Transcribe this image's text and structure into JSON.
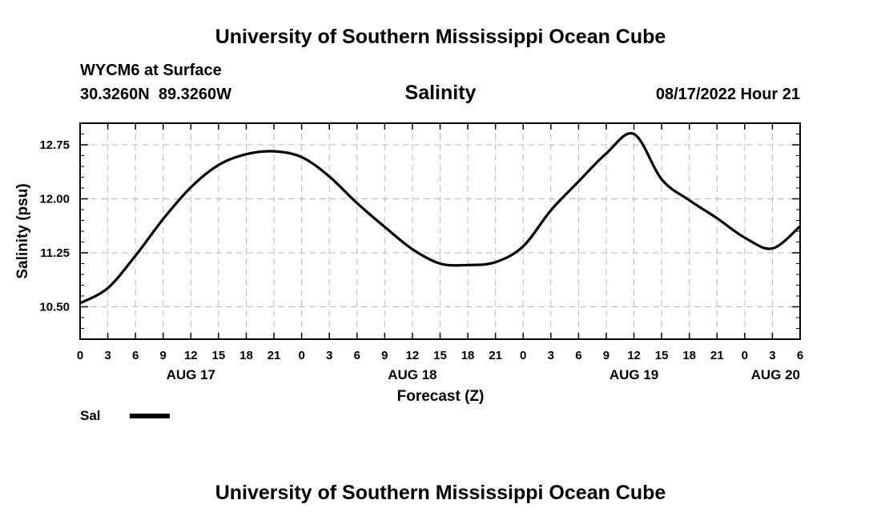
{
  "header": {
    "title": "University of Southern Mississippi Ocean Cube",
    "station": "WYCM6 at Surface",
    "coords": "30.3260N  89.3260W",
    "variable": "Salinity",
    "issued": "08/17/2022 Hour 21"
  },
  "footer": {
    "title": "University of Southern Mississippi Ocean Cube"
  },
  "legend": {
    "label": "Sal",
    "color": "#000000"
  },
  "chart_data": {
    "type": "line",
    "title": "Salinity",
    "xlabel": "Forecast (Z)",
    "ylabel": "Salinity (psu)",
    "x_start": "08/17/2022 00Z",
    "x_step_hours": 3,
    "x_tick_labels": [
      "0",
      "3",
      "6",
      "9",
      "12",
      "15",
      "18",
      "21",
      "0",
      "3",
      "6",
      "9",
      "12",
      "15",
      "18",
      "21",
      "0",
      "3",
      "6",
      "9",
      "12",
      "15",
      "18",
      "21",
      "0",
      "3",
      "6"
    ],
    "date_labels": [
      {
        "label": "AUG 17",
        "tick_index": 4
      },
      {
        "label": "AUG 18",
        "tick_index": 12
      },
      {
        "label": "AUG 19",
        "tick_index": 20
      },
      {
        "label": "AUG 20",
        "tick_index": 26
      }
    ],
    "yticks": [
      10.5,
      11.25,
      12.0,
      12.75
    ],
    "ytick_labels": [
      "10.50",
      "11.25",
      "12.00",
      "12.75"
    ],
    "ylim": [
      10.05,
      13.05
    ],
    "grid": true,
    "legend_position": "bottom-left",
    "series": [
      {
        "name": "Sal",
        "color": "#000000",
        "x_hours": [
          0,
          3,
          6,
          9,
          12,
          15,
          18,
          21,
          24,
          27,
          30,
          33,
          36,
          39,
          42,
          45,
          48,
          51,
          54,
          57,
          60,
          63,
          66,
          69,
          72,
          75,
          78
        ],
        "values": [
          10.55,
          10.76,
          11.21,
          11.72,
          12.16,
          12.47,
          12.62,
          12.66,
          12.58,
          12.31,
          11.94,
          11.61,
          11.3,
          11.1,
          11.08,
          11.12,
          11.34,
          11.84,
          12.24,
          12.63,
          12.9,
          12.27,
          11.98,
          11.73,
          11.46,
          11.31,
          11.62
        ]
      }
    ]
  }
}
